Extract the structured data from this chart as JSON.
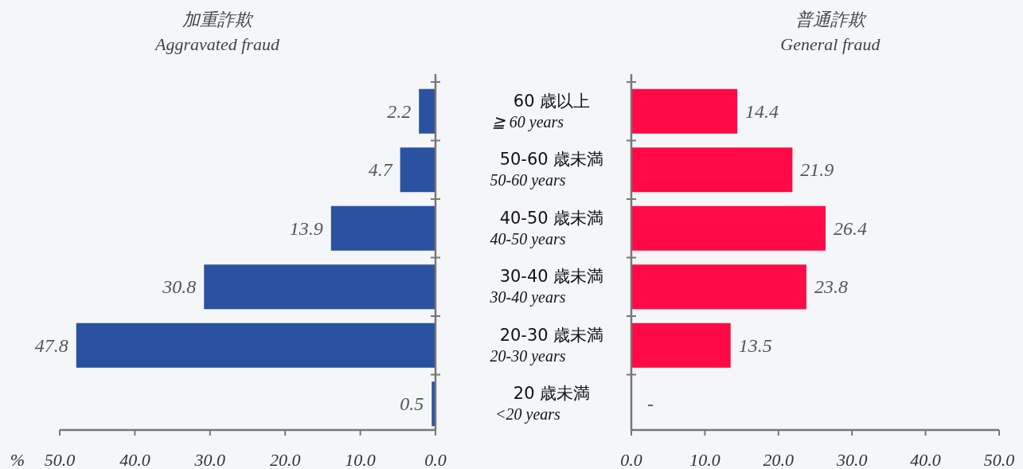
{
  "chart_data": [
    {
      "type": "bar",
      "orientation": "horizontal",
      "title": "加重詐欺",
      "subtitle": "Aggravated fraud",
      "xlabel": "%",
      "categories": [
        "60 歳以上\n≧  60 years",
        "50-60 歳未満\n50-60 years",
        "40-50 歳未満\n40-50 years",
        "30-40 歳未満\n30-40 years",
        "20-30 歳未満\n20-30 years",
        "20 歳未満\n<20 years"
      ],
      "values": [
        2.2,
        4.7,
        13.9,
        30.8,
        47.8,
        0.5
      ],
      "color": "#2a52a0",
      "data_labels": true,
      "xlim": [
        50,
        0
      ],
      "xticks": [
        {
          "value": 50,
          "label": "50.0"
        },
        {
          "value": 40,
          "label": "40.0"
        },
        {
          "value": 30,
          "label": "30.0"
        },
        {
          "value": 20,
          "label": "20.0"
        },
        {
          "value": 10,
          "label": "10.0"
        },
        {
          "value": 0,
          "label": "0.0"
        }
      ]
    },
    {
      "type": "bar",
      "orientation": "horizontal",
      "title": "普通詐欺",
      "subtitle": "General fraud",
      "values": [
        14.4,
        21.9,
        26.4,
        23.8,
        13.5,
        null
      ],
      "value_labels": [
        "14.4",
        "21.9",
        "26.4",
        "23.8",
        "13.5",
        "-"
      ],
      "color": "#ff0a47",
      "tick_labels": "x",
      "xlim": [
        0,
        50
      ],
      "xticks": [
        {
          "value": 0,
          "label": "0.0"
        },
        {
          "value": 10,
          "label": "10.0"
        },
        {
          "value": 20,
          "label": "20.0"
        },
        {
          "value": 30,
          "label": "30.0"
        },
        {
          "value": 40,
          "label": "40.0"
        },
        {
          "value": 50,
          "label": "50.0"
        }
      ]
    }
  ]
}
